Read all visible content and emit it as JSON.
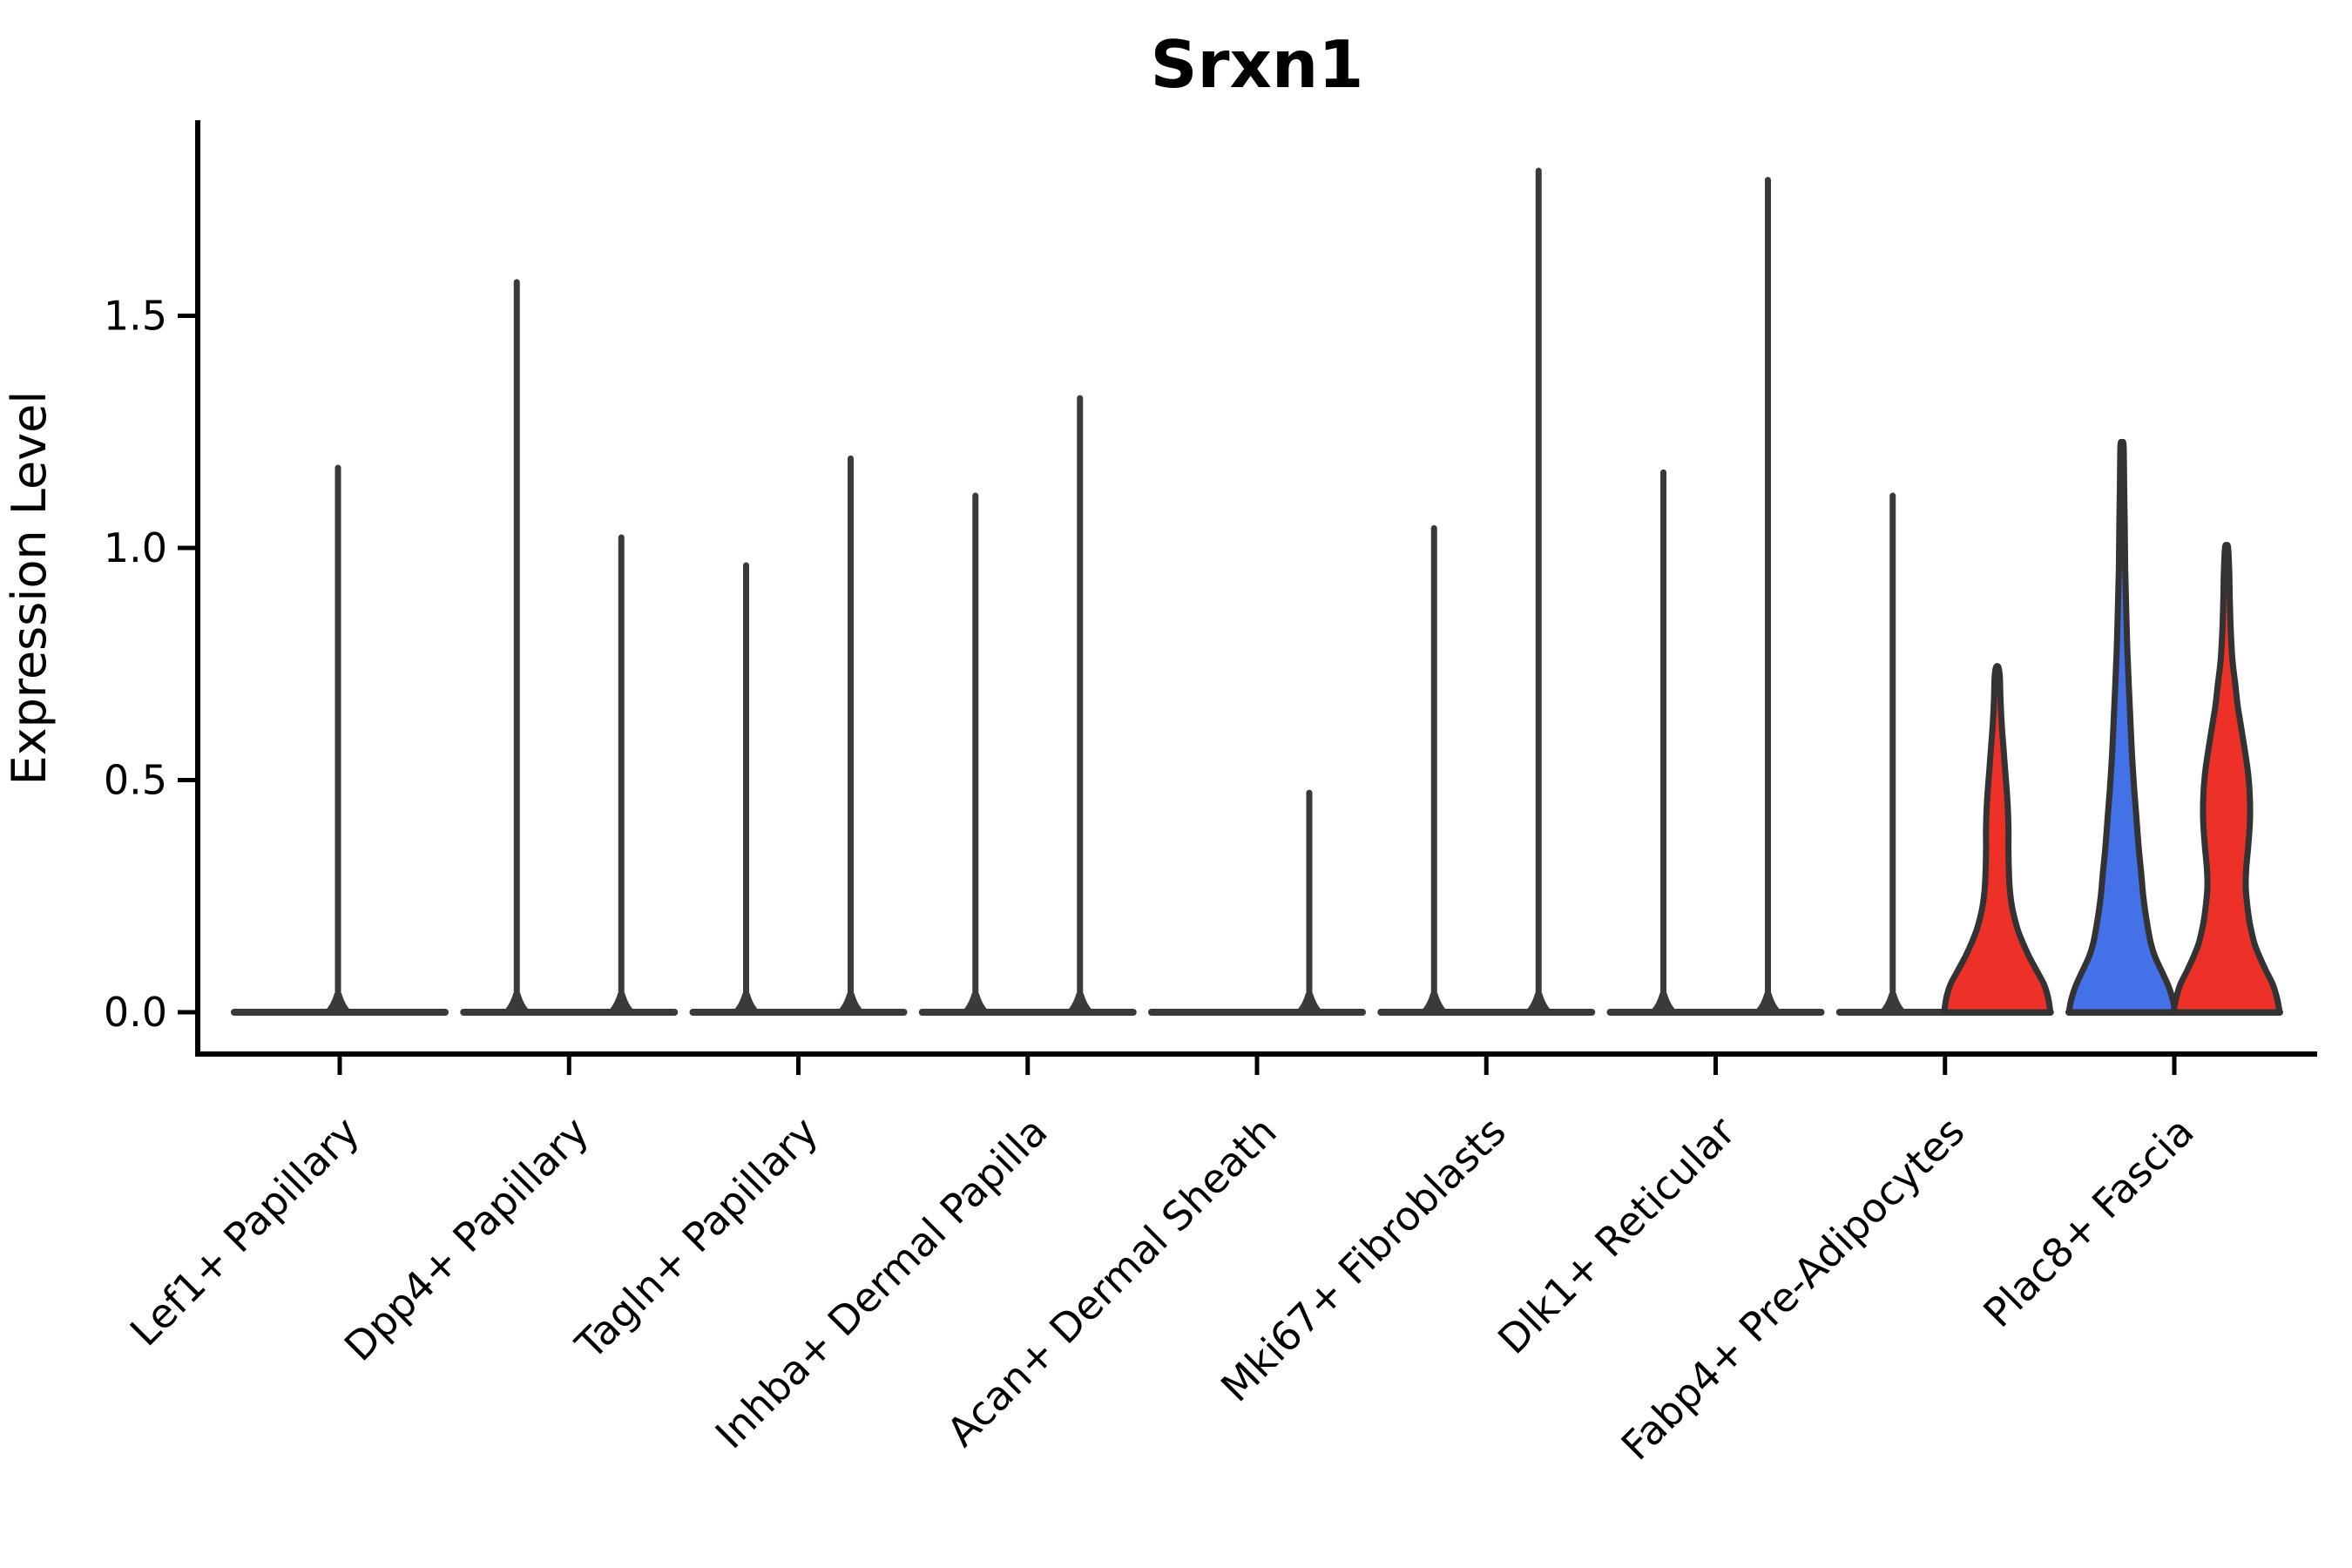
{
  "chart_data": {
    "type": "violin",
    "title": "Srxn1",
    "xlabel": "",
    "ylabel": "Expression Level",
    "ytick_labels": [
      "0.0",
      "0.5",
      "1.0",
      "1.5"
    ],
    "ytick_values": [
      0.0,
      0.5,
      1.0,
      1.5
    ],
    "ylim": [
      -0.09,
      1.93
    ],
    "grid": false,
    "legend": "none",
    "colors": {
      "red_fill": "#ee3128",
      "blue_fill": "#4470e8",
      "violin_outline": "#333333",
      "spike": "#3a3a3a",
      "axis": "#000000",
      "background": "#ffffff"
    },
    "categories": [
      "Lef1+ Papillary",
      "Dpp4+ Papillary",
      "Tagln+ Papillary",
      "Inhba+ Dermal Papilla",
      "Acan+ Dermal Sheath",
      "Mki67+ Fibroblasts",
      "Dlk1+ Reticular",
      "Fabp4+ Pre-Adipocytes",
      "Plac8+ Fascia"
    ],
    "violins": [
      {
        "category": "Lef1+ Papillary",
        "parts": [
          {
            "side": "center",
            "kind": "spike",
            "max": 1.18
          }
        ]
      },
      {
        "category": "Dpp4+ Papillary",
        "parts": [
          {
            "side": "left",
            "kind": "spike",
            "max": 1.58
          },
          {
            "side": "right",
            "kind": "spike",
            "max": 1.03
          }
        ]
      },
      {
        "category": "Tagln+ Papillary",
        "parts": [
          {
            "side": "left",
            "kind": "spike",
            "max": 0.97
          },
          {
            "side": "right",
            "kind": "spike",
            "max": 1.2
          }
        ]
      },
      {
        "category": "Inhba+ Dermal Papilla",
        "parts": [
          {
            "side": "left",
            "kind": "spike",
            "max": 1.12
          },
          {
            "side": "right",
            "kind": "spike",
            "max": 1.33
          }
        ]
      },
      {
        "category": "Acan+ Dermal Sheath",
        "parts": [
          {
            "side": "right",
            "kind": "spike",
            "max": 0.48
          }
        ]
      },
      {
        "category": "Mki67+ Fibroblasts",
        "parts": [
          {
            "side": "left",
            "kind": "spike",
            "max": 1.05
          },
          {
            "side": "right",
            "kind": "spike",
            "max": 1.82
          }
        ]
      },
      {
        "category": "Dlk1+ Reticular",
        "parts": [
          {
            "side": "left",
            "kind": "spike",
            "max": 1.17
          },
          {
            "side": "right",
            "kind": "spike",
            "max": 1.8
          }
        ]
      },
      {
        "category": "Fabp4+ Pre-Adipocytes",
        "parts": [
          {
            "side": "left",
            "kind": "spike",
            "max": 1.12
          },
          {
            "side": "right",
            "kind": "filled",
            "max": 0.74,
            "fill": "red",
            "profile": [
              [
                0.0,
                1.0
              ],
              [
                0.03,
                0.96
              ],
              [
                0.06,
                0.88
              ],
              [
                0.09,
                0.74
              ],
              [
                0.12,
                0.6
              ],
              [
                0.15,
                0.48
              ],
              [
                0.18,
                0.38
              ],
              [
                0.22,
                0.29
              ],
              [
                0.26,
                0.24
              ],
              [
                0.3,
                0.22
              ],
              [
                0.35,
                0.21
              ],
              [
                0.4,
                0.21
              ],
              [
                0.46,
                0.19
              ],
              [
                0.52,
                0.15
              ],
              [
                0.58,
                0.11
              ],
              [
                0.63,
                0.08
              ],
              [
                0.68,
                0.06
              ],
              [
                0.72,
                0.05
              ],
              [
                0.74,
                0.03
              ]
            ]
          }
        ]
      },
      {
        "category": "Plac8+ Fascia",
        "parts": [
          {
            "side": "left",
            "kind": "filled",
            "max": 1.22,
            "fill": "blue",
            "profile": [
              [
                0.0,
                1.0
              ],
              [
                0.03,
                0.95
              ],
              [
                0.06,
                0.86
              ],
              [
                0.09,
                0.74
              ],
              [
                0.12,
                0.62
              ],
              [
                0.15,
                0.54
              ],
              [
                0.2,
                0.46
              ],
              [
                0.25,
                0.4
              ],
              [
                0.3,
                0.36
              ],
              [
                0.36,
                0.31
              ],
              [
                0.42,
                0.27
              ],
              [
                0.48,
                0.23
              ],
              [
                0.55,
                0.19
              ],
              [
                0.62,
                0.16
              ],
              [
                0.7,
                0.13
              ],
              [
                0.78,
                0.1
              ],
              [
                0.86,
                0.08
              ],
              [
                0.95,
                0.06
              ],
              [
                1.05,
                0.05
              ],
              [
                1.14,
                0.04
              ],
              [
                1.22,
                0.03
              ]
            ]
          },
          {
            "side": "right",
            "kind": "filled",
            "max": 1.0,
            "fill": "red",
            "profile": [
              [
                0.0,
                1.0
              ],
              [
                0.03,
                0.95
              ],
              [
                0.06,
                0.87
              ],
              [
                0.09,
                0.74
              ],
              [
                0.12,
                0.62
              ],
              [
                0.15,
                0.52
              ],
              [
                0.19,
                0.44
              ],
              [
                0.23,
                0.39
              ],
              [
                0.27,
                0.36
              ],
              [
                0.31,
                0.37
              ],
              [
                0.36,
                0.41
              ],
              [
                0.41,
                0.44
              ],
              [
                0.46,
                0.44
              ],
              [
                0.51,
                0.41
              ],
              [
                0.56,
                0.35
              ],
              [
                0.61,
                0.28
              ],
              [
                0.66,
                0.21
              ],
              [
                0.71,
                0.16
              ],
              [
                0.76,
                0.11
              ],
              [
                0.82,
                0.08
              ],
              [
                0.89,
                0.06
              ],
              [
                0.95,
                0.05
              ],
              [
                1.0,
                0.03
              ]
            ]
          }
        ]
      }
    ]
  }
}
